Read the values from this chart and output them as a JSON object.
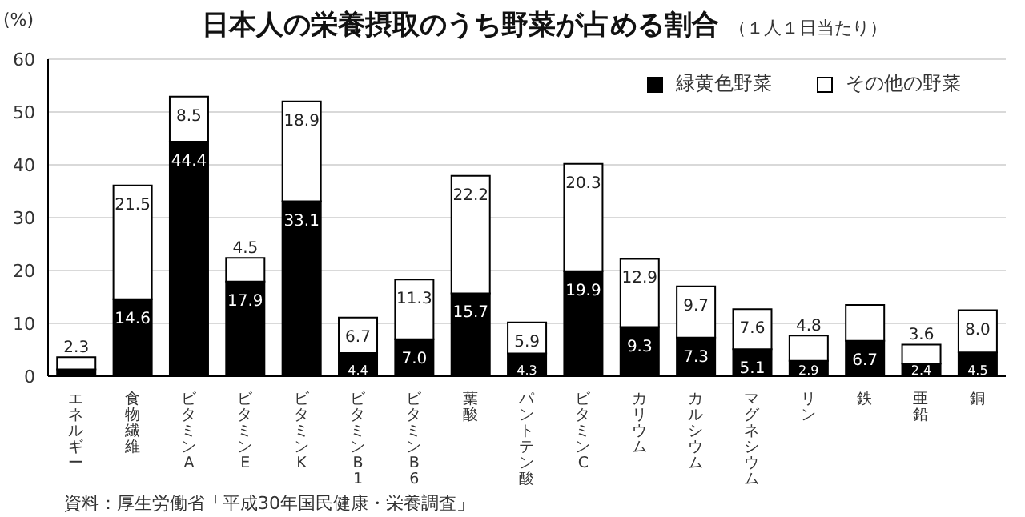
{
  "chart_data": {
    "type": "bar",
    "title": "日本人の栄養摂取のうち野菜が占める割合",
    "subtitle": "（１人１日当たり）",
    "ylabel": "(%)",
    "categories": [
      "エネルギー",
      "食物繊維",
      "ビタミンA",
      "ビタミンE",
      "ビタミンK",
      "ビタミンB1",
      "ビタミンB6",
      "葉酸",
      "パントテン酸",
      "ビタミンC",
      "カリウム",
      "カルシウム",
      "マグネシウム",
      "リン",
      "鉄",
      "亜鉛",
      "銅"
    ],
    "stacked": true,
    "series": [
      {
        "name": "緑黄色野菜",
        "color": "#000000",
        "values": [
          1.3,
          14.6,
          44.4,
          17.9,
          33.1,
          4.4,
          7.0,
          15.7,
          4.3,
          19.9,
          9.3,
          7.3,
          5.1,
          2.9,
          6.7,
          2.4,
          4.5
        ],
        "value_labels": [
          null,
          "14.6",
          "44.4",
          "17.9",
          "33.1",
          "4.4",
          "7.0",
          "15.7",
          "4.3",
          "19.9",
          "9.3",
          "7.3",
          "5.1",
          "2.9",
          "6.7",
          "2.4",
          "4.5"
        ]
      },
      {
        "name": "その他の野菜",
        "color": "#ffffff",
        "values": [
          2.3,
          21.5,
          8.5,
          4.5,
          18.9,
          6.7,
          11.3,
          22.2,
          5.9,
          20.3,
          12.9,
          9.7,
          7.6,
          4.8,
          6.8,
          3.6,
          8.0
        ],
        "value_labels": [
          "2.3",
          "21.5",
          "8.5",
          "4.5",
          "18.9",
          "6.7",
          "11.3",
          "22.2",
          "5.9",
          "20.3",
          "12.9",
          "9.7",
          "7.6",
          "4.8",
          null,
          "3.6",
          "8.0"
        ]
      }
    ],
    "ylim": [
      0,
      60
    ],
    "yticks": [
      0,
      10,
      20,
      30,
      40,
      50,
      60
    ],
    "grid": "y",
    "legend": "top right",
    "annotations": [
      "資料：厚生労働省「平成30年国民健康・栄養調査」"
    ]
  }
}
